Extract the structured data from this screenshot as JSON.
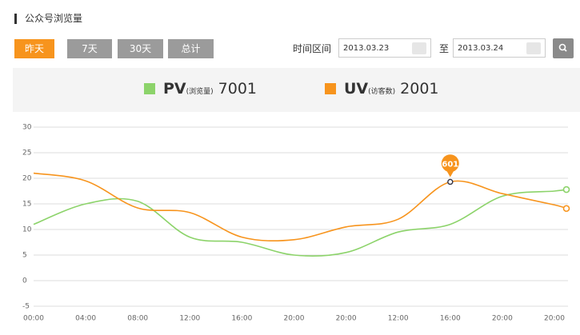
{
  "header": {
    "title": "公众号浏览量"
  },
  "toolbar": {
    "buttons": [
      "昨天",
      "7天",
      "30天",
      "总计"
    ],
    "range_label": "时间区间",
    "start_date": "2013.03.23",
    "to_label": "至",
    "end_date": "2013.03.24"
  },
  "legend": [
    {
      "name": "PV",
      "note": "(浏览量)",
      "total": "7001"
    },
    {
      "name": "UV",
      "note": "(访客数)",
      "total": "2001"
    }
  ],
  "chart_data": {
    "type": "line",
    "categories": [
      "00:00",
      "04:00",
      "08:00",
      "12:00",
      "16:00",
      "20:00",
      "20:00",
      "12:00",
      "16:00",
      "20:00",
      "20:00",
      null
    ],
    "series": [
      {
        "name": "PV",
        "color": "#8cd36a",
        "values": [
          11,
          15,
          15.5,
          8.5,
          7.5,
          5,
          5.5,
          9.5,
          11,
          16.5,
          17.5,
          17.8
        ]
      },
      {
        "name": "UV",
        "color": "#f7941d",
        "values": [
          21,
          19.5,
          14.2,
          13.3,
          8.5,
          8,
          10.5,
          12,
          19.3,
          17,
          14.8,
          14.1
        ]
      }
    ],
    "annotations": [
      {
        "text": "601"
      }
    ],
    "ylim": [
      -5,
      30
    ],
    "yticks": [
      -5,
      0,
      5,
      10,
      15,
      20,
      25,
      30
    ],
    "grid": true
  }
}
